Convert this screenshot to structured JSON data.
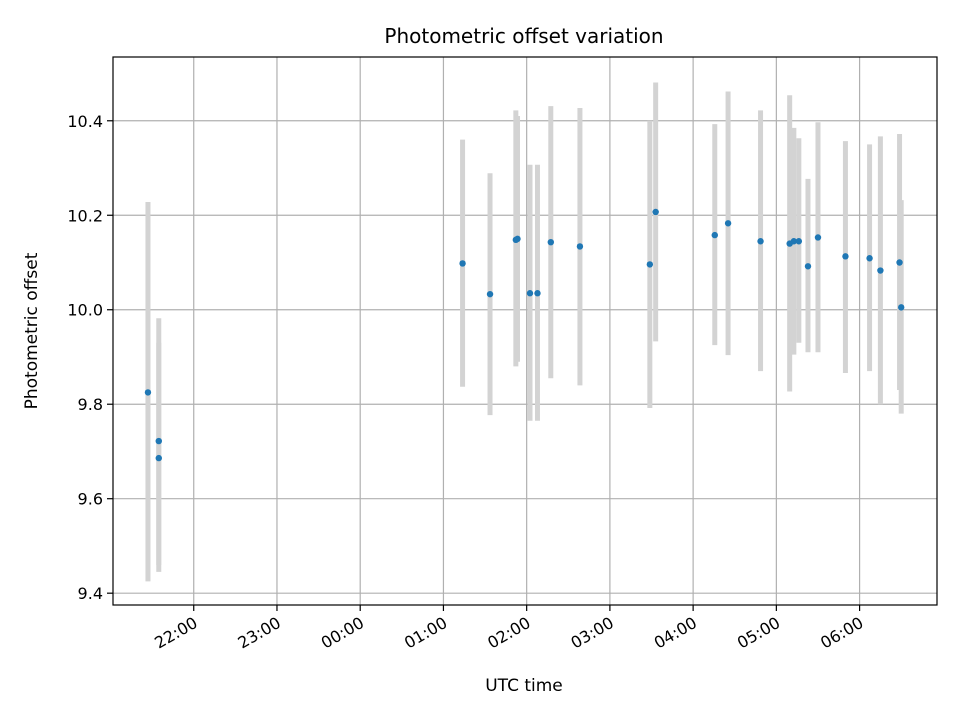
{
  "chart_data": {
    "type": "scatter",
    "title": "Photometric offset variation",
    "xlabel": "UTC time",
    "ylabel": "Photometric offset",
    "x_unit": "hours",
    "x_ticks": [
      {
        "value": 22,
        "label": "22:00"
      },
      {
        "value": 23,
        "label": "23:00"
      },
      {
        "value": 24,
        "label": "00:00"
      },
      {
        "value": 25,
        "label": "01:00"
      },
      {
        "value": 26,
        "label": "02:00"
      },
      {
        "value": 27,
        "label": "03:00"
      },
      {
        "value": 28,
        "label": "04:00"
      },
      {
        "value": 29,
        "label": "05:00"
      },
      {
        "value": 30,
        "label": "06:00"
      }
    ],
    "y_ticks": [
      {
        "value": 9.4,
        "label": "9.4"
      },
      {
        "value": 9.6,
        "label": "9.6"
      },
      {
        "value": 9.8,
        "label": "9.8"
      },
      {
        "value": 10.0,
        "label": "10.0"
      },
      {
        "value": 10.2,
        "label": "10.2"
      },
      {
        "value": 10.4,
        "label": "10.4"
      }
    ],
    "xlim": [
      21.03,
      30.93
    ],
    "ylim": [
      9.375,
      10.535
    ],
    "grid": true,
    "colors": {
      "point": "#1f77b4",
      "errorbar": "#d3d3d3",
      "grid": "#b0b0b0"
    },
    "points": [
      {
        "x": 21.45,
        "y": 9.825,
        "low": 9.425,
        "high": 10.228
      },
      {
        "x": 21.58,
        "y": 9.722,
        "low": 9.46,
        "high": 9.982
      },
      {
        "x": 21.58,
        "y": 9.686,
        "low": 9.445,
        "high": 9.93
      },
      {
        "x": 25.23,
        "y": 10.098,
        "low": 9.837,
        "high": 10.36
      },
      {
        "x": 25.56,
        "y": 10.033,
        "low": 9.777,
        "high": 10.289
      },
      {
        "x": 25.87,
        "y": 10.148,
        "low": 9.88,
        "high": 10.422
      },
      {
        "x": 25.89,
        "y": 10.15,
        "low": 9.89,
        "high": 10.41
      },
      {
        "x": 26.04,
        "y": 10.035,
        "low": 9.765,
        "high": 10.307
      },
      {
        "x": 26.13,
        "y": 10.035,
        "low": 9.765,
        "high": 10.307
      },
      {
        "x": 26.29,
        "y": 10.143,
        "low": 9.855,
        "high": 10.431
      },
      {
        "x": 26.64,
        "y": 10.134,
        "low": 9.84,
        "high": 10.427
      },
      {
        "x": 27.48,
        "y": 10.096,
        "low": 9.792,
        "high": 10.4
      },
      {
        "x": 27.55,
        "y": 10.207,
        "low": 9.933,
        "high": 10.481
      },
      {
        "x": 28.26,
        "y": 10.158,
        "low": 9.925,
        "high": 10.393
      },
      {
        "x": 28.42,
        "y": 10.183,
        "low": 9.904,
        "high": 10.462
      },
      {
        "x": 28.81,
        "y": 10.145,
        "low": 9.87,
        "high": 10.422
      },
      {
        "x": 29.16,
        "y": 10.14,
        "low": 9.827,
        "high": 10.454
      },
      {
        "x": 29.21,
        "y": 10.145,
        "low": 9.905,
        "high": 10.385
      },
      {
        "x": 29.27,
        "y": 10.145,
        "low": 9.93,
        "high": 10.363
      },
      {
        "x": 29.38,
        "y": 10.092,
        "low": 9.91,
        "high": 10.277
      },
      {
        "x": 29.5,
        "y": 10.153,
        "low": 9.91,
        "high": 10.397
      },
      {
        "x": 29.83,
        "y": 10.113,
        "low": 9.866,
        "high": 10.357
      },
      {
        "x": 30.12,
        "y": 10.109,
        "low": 9.87,
        "high": 10.35
      },
      {
        "x": 30.25,
        "y": 10.083,
        "low": 9.8,
        "high": 10.367
      },
      {
        "x": 30.48,
        "y": 10.1,
        "low": 9.83,
        "high": 10.372
      },
      {
        "x": 30.5,
        "y": 10.005,
        "low": 9.78,
        "high": 10.232
      }
    ]
  }
}
